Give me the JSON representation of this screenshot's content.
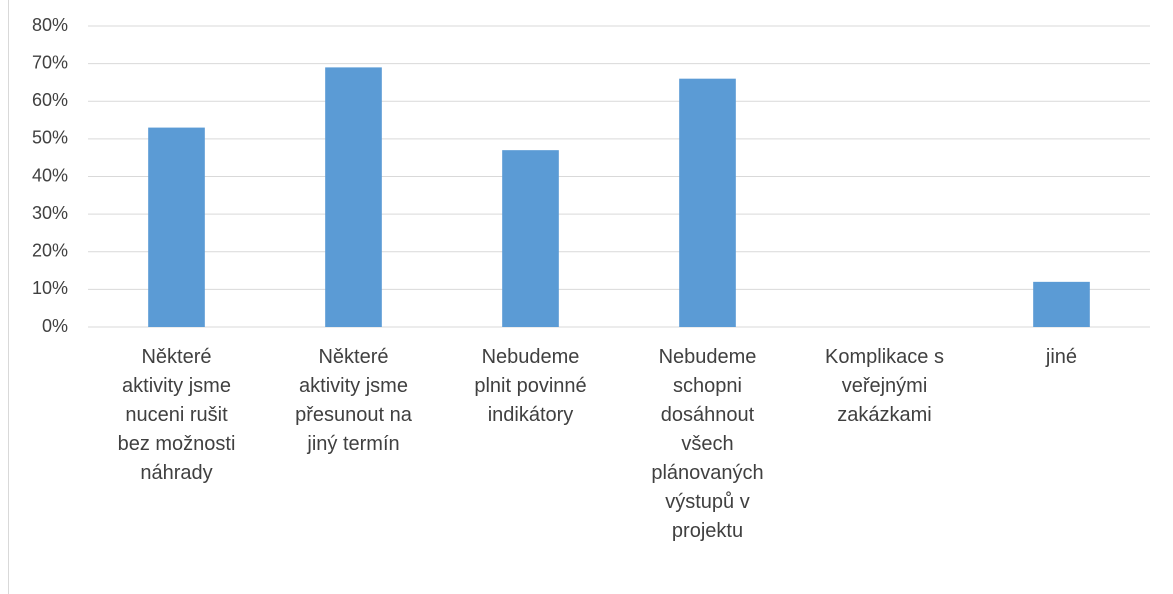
{
  "chart_data": {
    "type": "bar",
    "categories": [
      "Některé aktivity jsme nuceni rušit bez možnosti náhrady",
      "Některé aktivity jsme přesunout na jiný termín",
      "Nebudeme plnit povinné indikátory",
      "Nebudeme schopni dosáhnout všech plánovaných výstupů v projektu",
      "Komplikace s veřejnými zakázkami",
      "jiné"
    ],
    "values": [
      53,
      69,
      47,
      66,
      0,
      12
    ],
    "color": "#5b9bd5",
    "ylim": [
      0,
      80
    ],
    "yticks": [
      {
        "value": 0,
        "label": "0%"
      },
      {
        "value": 10,
        "label": "10%"
      },
      {
        "value": 20,
        "label": "20%"
      },
      {
        "value": 30,
        "label": "30%"
      },
      {
        "value": 40,
        "label": "40%"
      },
      {
        "value": 50,
        "label": "50%"
      },
      {
        "value": 60,
        "label": "60%"
      },
      {
        "value": 70,
        "label": "70%"
      },
      {
        "value": 80,
        "label": "80%"
      }
    ],
    "grid": true
  }
}
